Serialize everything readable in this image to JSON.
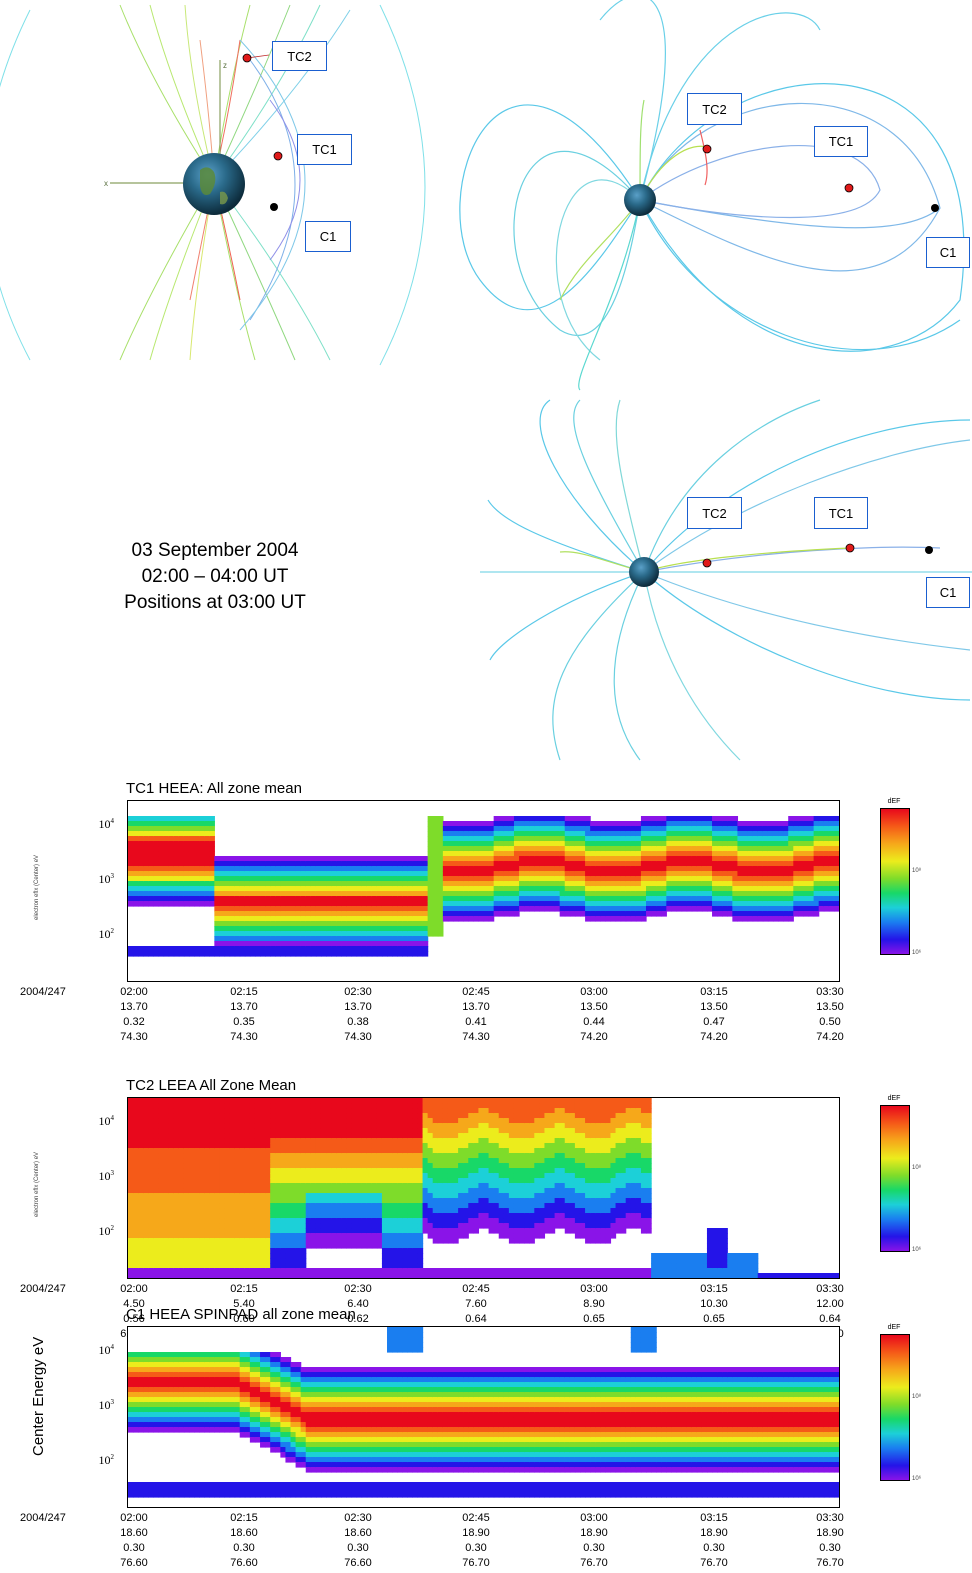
{
  "caption": {
    "line1": "03 September 2004",
    "line2": "02:00 – 04:00 UT",
    "line3": "Positions at 03:00 UT"
  },
  "orbit_panels": {
    "panel1": {
      "labels": [
        "TC2",
        "TC1",
        "C1"
      ],
      "axis_labels": [
        "z",
        "x"
      ]
    },
    "panel2": {
      "labels": [
        "TC2",
        "TC1",
        "C1"
      ]
    },
    "panel3": {
      "labels": [
        "TC2",
        "TC1",
        "C1"
      ]
    }
  },
  "spectrograms": [
    {
      "title": "TC1 HEEA: All zone mean",
      "ylabel": "electron eflx (Center) eV",
      "yticks": [
        "10",
        "10",
        "10"
      ],
      "yexp": [
        "4",
        "3",
        "2"
      ],
      "colorbar_title": "dEF",
      "colorbar_ticks": [
        "10⁸",
        "10⁶"
      ],
      "x_row_label": "2004/247",
      "x_rows": [
        [
          "02:00",
          "02:15",
          "02:30",
          "02:45",
          "03:00",
          "03:15",
          "03:30"
        ],
        [
          "13.70",
          "13.70",
          "13.70",
          "13.70",
          "13.50",
          "13.50",
          "13.50"
        ],
        [
          "0.32",
          "0.35",
          "0.38",
          "0.41",
          "0.44",
          "0.47",
          "0.50"
        ],
        [
          "74.30",
          "74.30",
          "74.30",
          "74.30",
          "74.20",
          "74.20",
          "74.20"
        ]
      ]
    },
    {
      "title": "TC2 LEEA All Zone Mean",
      "ylabel": "electron eflx (Center) eV",
      "yticks": [
        "10",
        "10",
        "10"
      ],
      "yexp": [
        "4",
        "3",
        "2"
      ],
      "colorbar_title": "dEF",
      "colorbar_ticks": [
        "10⁸",
        "10⁶"
      ],
      "x_row_label": "2004/247",
      "x_rows": [
        [
          "02:00",
          "02:15",
          "02:30",
          "02:45",
          "03:00",
          "03:15",
          "03:30"
        ],
        [
          "4.50",
          "5.40",
          "6.40",
          "7.60",
          "8.90",
          "10.30",
          "12.00"
        ],
        [
          "0.56",
          "0.60",
          "0.62",
          "0.64",
          "0.65",
          "0.65",
          "0.64"
        ],
        [
          "62.00",
          "64.60",
          "66.80",
          "68.70",
          "70.40",
          "71.80",
          "73.20"
        ]
      ]
    },
    {
      "title": "C1 HEEA SPINPAD all zone mean",
      "ylabel": "Center Energy eV",
      "yticks": [
        "10",
        "10",
        "10"
      ],
      "yexp": [
        "4",
        "3",
        "2"
      ],
      "colorbar_title": "dEF",
      "colorbar_ticks": [
        "10⁸",
        "10⁶"
      ],
      "x_row_label": "2004/247",
      "x_rows": [
        [
          "02:00",
          "02:15",
          "02:30",
          "02:45",
          "03:00",
          "03:15",
          "03:30"
        ],
        [
          "18.60",
          "18.60",
          "18.60",
          "18.90",
          "18.90",
          "18.90",
          "18.90"
        ],
        [
          "0.30",
          "0.30",
          "0.30",
          "0.30",
          "0.30",
          "0.30",
          "0.30"
        ],
        [
          "76.60",
          "76.60",
          "76.60",
          "76.70",
          "76.70",
          "76.70",
          "76.70"
        ]
      ]
    }
  ]
}
